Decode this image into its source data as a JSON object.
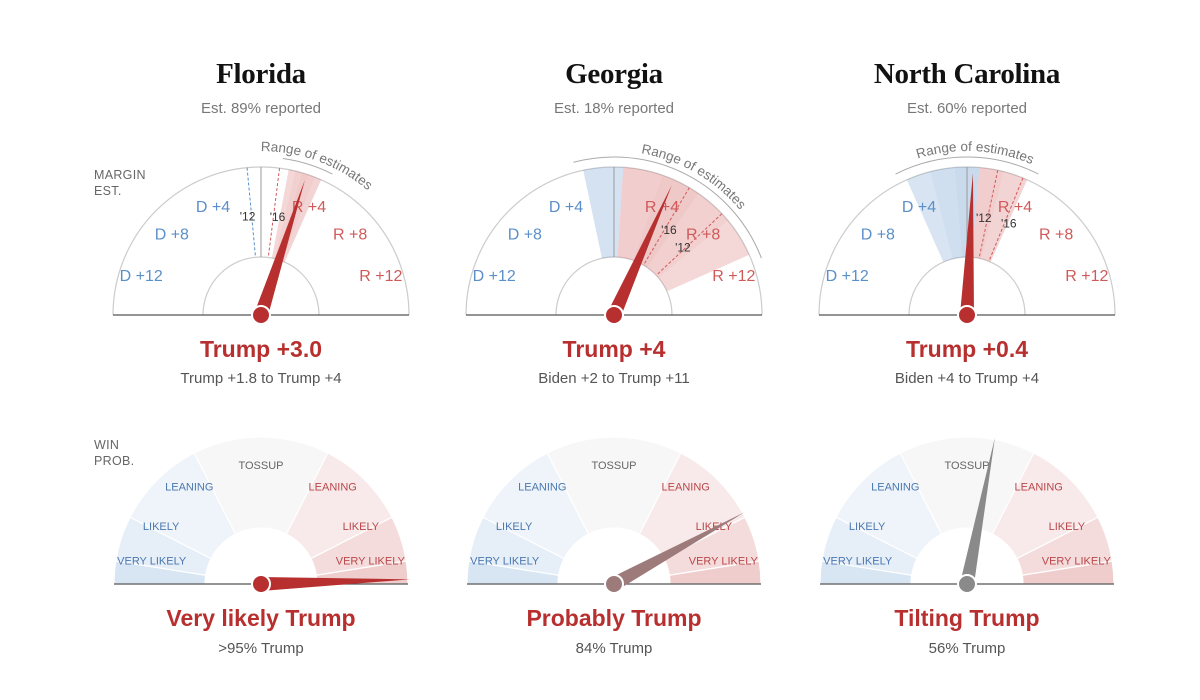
{
  "axis_labels": {
    "margin": [
      "MARGIN",
      "EST."
    ],
    "win": [
      "WIN",
      "PROB."
    ]
  },
  "range_label": "Range of estimates",
  "margin_tick_labels": {
    "d": [
      "D +4",
      "D +8",
      "D +12"
    ],
    "r": [
      "R +4",
      "R +8",
      "R +12"
    ]
  },
  "historical_labels": [
    "'12",
    "'16"
  ],
  "win_bands": [
    {
      "label": "VERY LIKELY",
      "side": "d"
    },
    {
      "label": "LIKELY",
      "side": "d"
    },
    {
      "label": "LEANING",
      "side": "d"
    },
    {
      "label": "TOSSUP",
      "side": "n"
    },
    {
      "label": "LEANING",
      "side": "r"
    },
    {
      "label": "LIKELY",
      "side": "r"
    },
    {
      "label": "VERY LIKELY",
      "side": "r"
    }
  ],
  "colors": {
    "dem": "#5b8fc9",
    "rep": "#d05a5a",
    "needle_red": "#b7302f",
    "needle_mauve": "#9e7b7b",
    "needle_gray": "#8a8a8a"
  },
  "chart_data": [
    {
      "type": "gauge",
      "state": "Florida",
      "reported": "Est. 89% reported",
      "margin": {
        "estimate": 3.0,
        "range": [
          1.8,
          4
        ],
        "hist_2012": -0.9,
        "hist_2016": 1.2,
        "scale_max": 15,
        "headline": "Trump +3.0",
        "range_text": "Trump +1.8 to Trump +4"
      },
      "win": {
        "probability_trump": 0.99,
        "needle_color": "red",
        "headline": "Very likely Trump",
        "prob_text": ">95% Trump"
      }
    },
    {
      "type": "gauge",
      "state": "Georgia",
      "reported": "Est. 18% reported",
      "margin": {
        "estimate": 4,
        "range": [
          -2,
          11
        ],
        "hist_2012": 7.8,
        "hist_2016": 5.1,
        "scale_max": 15,
        "headline": "Trump +4",
        "range_text": "Biden +2 to Trump +11"
      },
      "win": {
        "probability_trump": 0.84,
        "needle_color": "mauve",
        "headline": "Probably Trump",
        "prob_text": "84% Trump"
      }
    },
    {
      "type": "gauge",
      "state": "North Carolina",
      "reported": "Est. 60% reported",
      "margin": {
        "estimate": 0.4,
        "range": [
          -4,
          4
        ],
        "hist_2012": 2.0,
        "hist_2016": 3.7,
        "scale_max": 15,
        "headline": "Trump +0.4",
        "range_text": "Biden +4 to Trump +4"
      },
      "win": {
        "probability_trump": 0.56,
        "needle_color": "gray",
        "headline": "Tilting Trump",
        "prob_text": "56% Trump"
      }
    }
  ]
}
